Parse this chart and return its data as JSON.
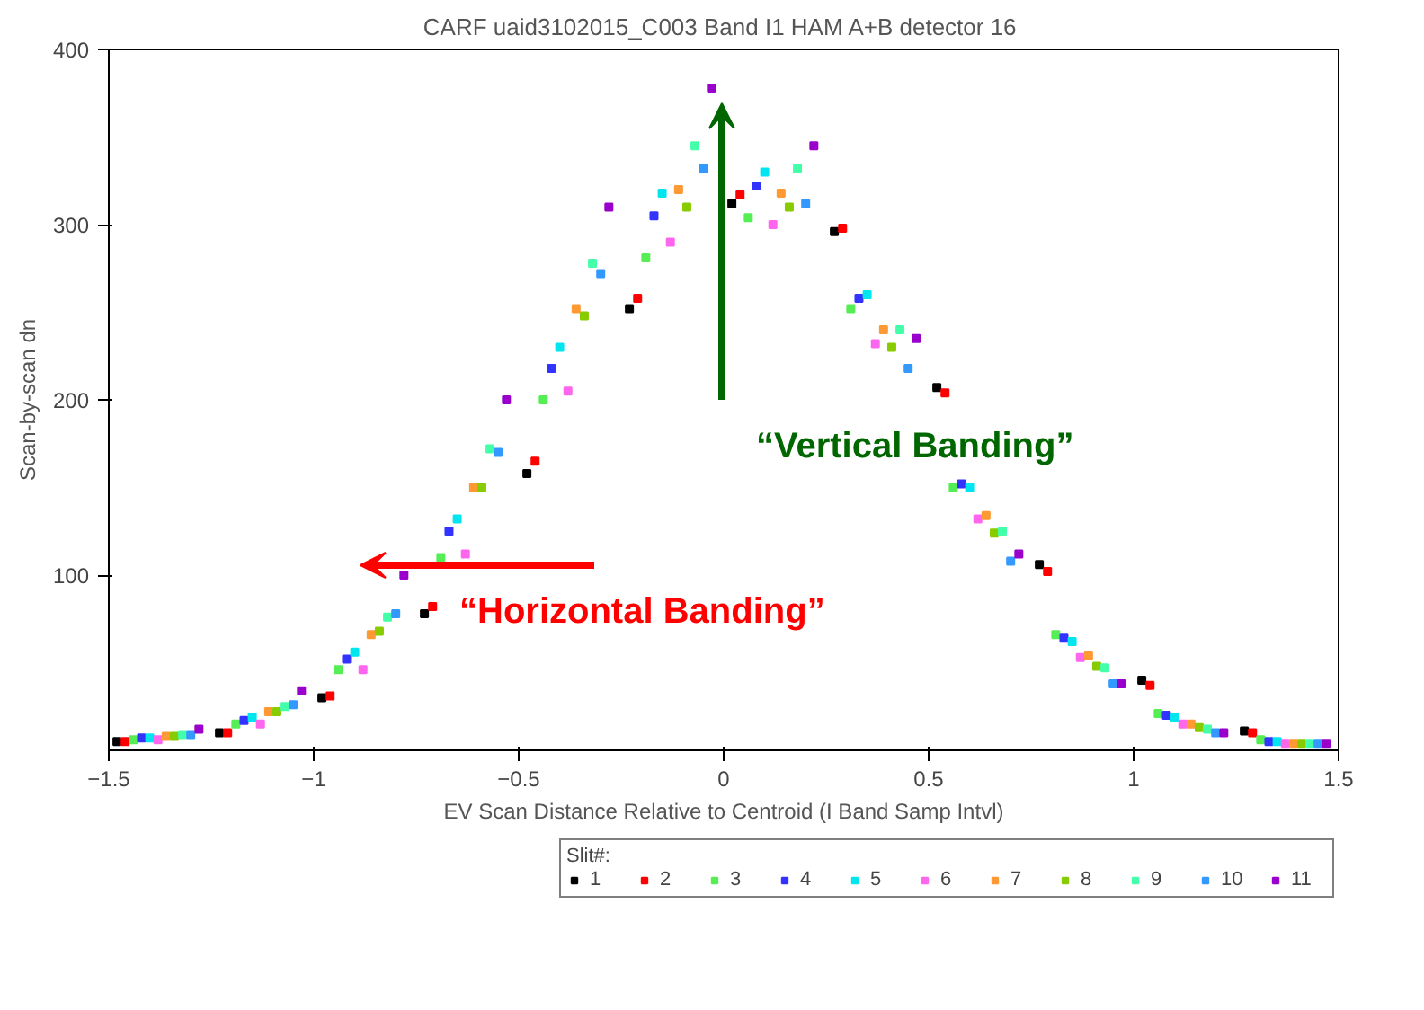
{
  "chart_data": {
    "type": "scatter",
    "title": "CARF uaid3102015_C003 Band I1 HAM A+B  detector 16",
    "xlabel": "EV Scan Distance Relative to Centroid (I Band Samp Intvl)",
    "ylabel": "Scan-by-scan dn",
    "legend_title": "Slit#:",
    "legend": "bottom",
    "marker": "square",
    "grid": false,
    "xlim": [
      -1.5,
      1.5
    ],
    "xticks": [
      -1.5,
      -1.0,
      -0.5,
      0.0,
      0.5,
      1.0,
      1.5
    ],
    "ylim": [
      0,
      400
    ],
    "yticks": [
      100,
      200,
      300,
      400
    ],
    "series": [
      {
        "name": "1",
        "color": "#000000",
        "x": [
          -1.48,
          -1.23,
          -0.98,
          -0.73,
          -0.48,
          -0.23,
          0.02,
          0.27,
          0.52,
          0.77,
          1.02,
          1.27
        ],
        "values": [
          5,
          10,
          30,
          78,
          158,
          252,
          312,
          296,
          207,
          106,
          40,
          11
        ]
      },
      {
        "name": "2",
        "color": "#ff0000",
        "x": [
          -1.46,
          -1.21,
          -0.96,
          -0.71,
          -0.46,
          -0.21,
          0.04,
          0.29,
          0.54,
          0.79,
          1.04,
          1.29
        ],
        "values": [
          5,
          10,
          31,
          82,
          165,
          258,
          317,
          298,
          204,
          102,
          37,
          10
        ]
      },
      {
        "name": "3",
        "color": "#55ee55",
        "x": [
          -1.44,
          -1.19,
          -0.94,
          -0.69,
          -0.44,
          -0.19,
          0.06,
          0.31,
          0.56,
          0.81,
          1.06,
          1.31
        ],
        "values": [
          6,
          15,
          46,
          110,
          200,
          281,
          304,
          252,
          150,
          66,
          21,
          6
        ]
      },
      {
        "name": "4",
        "color": "#3333ff",
        "x": [
          -1.42,
          -1.17,
          -0.92,
          -0.67,
          -0.42,
          -0.17,
          0.08,
          0.33,
          0.58,
          0.83,
          1.08,
          1.33
        ],
        "values": [
          7,
          17,
          52,
          125,
          218,
          305,
          322,
          258,
          152,
          64,
          20,
          5
        ]
      },
      {
        "name": "5",
        "color": "#00e5ee",
        "x": [
          -1.4,
          -1.15,
          -0.9,
          -0.65,
          -0.4,
          -0.15,
          0.1,
          0.35,
          0.6,
          0.85,
          1.1,
          1.35
        ],
        "values": [
          7,
          19,
          56,
          132,
          230,
          318,
          330,
          260,
          150,
          62,
          19,
          5
        ]
      },
      {
        "name": "6",
        "color": "#ff66ee",
        "x": [
          -1.38,
          -1.13,
          -0.88,
          -0.63,
          -0.38,
          -0.13,
          0.12,
          0.37,
          0.62,
          0.87,
          1.12,
          1.37
        ],
        "values": [
          6,
          15,
          46,
          112,
          205,
          290,
          300,
          232,
          132,
          53,
          15,
          4
        ]
      },
      {
        "name": "7",
        "color": "#ff9933",
        "x": [
          -1.36,
          -1.11,
          -0.86,
          -0.61,
          -0.36,
          -0.11,
          0.14,
          0.39,
          0.64,
          0.89,
          1.14,
          1.39
        ],
        "values": [
          8,
          22,
          66,
          150,
          252,
          320,
          318,
          240,
          134,
          54,
          15,
          4
        ]
      },
      {
        "name": "8",
        "color": "#88cc00",
        "x": [
          -1.34,
          -1.09,
          -0.84,
          -0.59,
          -0.34,
          -0.09,
          0.16,
          0.41,
          0.66,
          0.91,
          1.16,
          1.41
        ],
        "values": [
          8,
          22,
          68,
          150,
          248,
          310,
          310,
          230,
          124,
          48,
          13,
          4
        ]
      },
      {
        "name": "9",
        "color": "#44ffaa",
        "x": [
          -1.32,
          -1.07,
          -0.82,
          -0.57,
          -0.32,
          -0.07,
          0.18,
          0.43,
          0.68,
          0.93,
          1.18,
          1.43
        ],
        "values": [
          9,
          25,
          76,
          172,
          278,
          345,
          332,
          240,
          125,
          47,
          12,
          4
        ]
      },
      {
        "name": "10",
        "color": "#3399ff",
        "x": [
          -1.3,
          -1.05,
          -0.8,
          -0.55,
          -0.3,
          -0.05,
          0.2,
          0.45,
          0.7,
          0.95,
          1.2,
          1.45
        ],
        "values": [
          9,
          26,
          78,
          170,
          272,
          332,
          312,
          218,
          108,
          38,
          10,
          4
        ]
      },
      {
        "name": "11",
        "color": "#9900cc",
        "x": [
          -1.28,
          -1.03,
          -0.78,
          -0.53,
          -0.28,
          -0.03,
          0.22,
          0.47,
          0.72,
          0.97,
          1.22,
          1.47
        ],
        "values": [
          12,
          34,
          100,
          200,
          310,
          378,
          345,
          235,
          112,
          38,
          10,
          4
        ]
      }
    ],
    "annotations": [
      "“Vertical Banding”",
      "“Horizontal Banding”"
    ]
  }
}
